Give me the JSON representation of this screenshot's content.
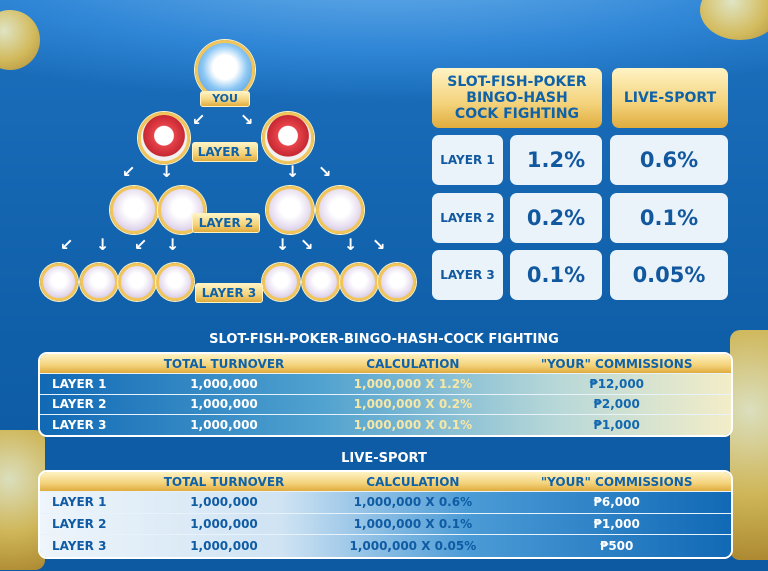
{
  "tree": {
    "you_label": "YOU",
    "layer_labels": [
      "LAYER 1",
      "LAYER 2",
      "LAYER 3"
    ]
  },
  "rates": {
    "headers": [
      "SLOT-FISH-POKER\nBINGO-HASH\nCOCK FIGHTING",
      "LIVE-SPORT"
    ],
    "rows": [
      {
        "layer": "LAYER 1",
        "slot": "1.2%",
        "live": "0.6%"
      },
      {
        "layer": "LAYER 2",
        "slot": "0.2%",
        "live": "0.1%"
      },
      {
        "layer": "LAYER 3",
        "slot": "0.1%",
        "live": "0.05%"
      }
    ]
  },
  "tables": [
    {
      "title": "SLOT-FISH-POKER-BINGO-HASH-COCK FIGHTING",
      "columns": [
        "",
        "TOTAL TURNOVER",
        "CALCULATION",
        "\"YOUR\" COMMISSIONS"
      ],
      "rows": [
        [
          "LAYER 1",
          "1,000,000",
          "1,000,000 X 1.2%",
          "₱12,000"
        ],
        [
          "LAYER 2",
          "1,000,000",
          "1,000,000 X 0.2%",
          "₱2,000"
        ],
        [
          "LAYER 3",
          "1,000,000",
          "1,000,000 X 0.1%",
          "₱1,000"
        ]
      ]
    },
    {
      "title": "LIVE-SPORT",
      "columns": [
        "",
        "TOTAL TURNOVER",
        "CALCULATION",
        "\"YOUR\" COMMISSIONS"
      ],
      "rows": [
        [
          "LAYER 1",
          "1,000,000",
          "1,000,000 X 0.6%",
          "₱6,000"
        ],
        [
          "LAYER 2",
          "1,000,000",
          "1,000,000 X 0.1%",
          "₱1,000"
        ],
        [
          "LAYER 3",
          "1,000,000",
          "1,000,000 X 0.05%",
          "₱500"
        ]
      ]
    }
  ],
  "colors": {
    "gold": "#f3d27a",
    "blue": "#1062a8",
    "background": "#0f5ea8"
  }
}
